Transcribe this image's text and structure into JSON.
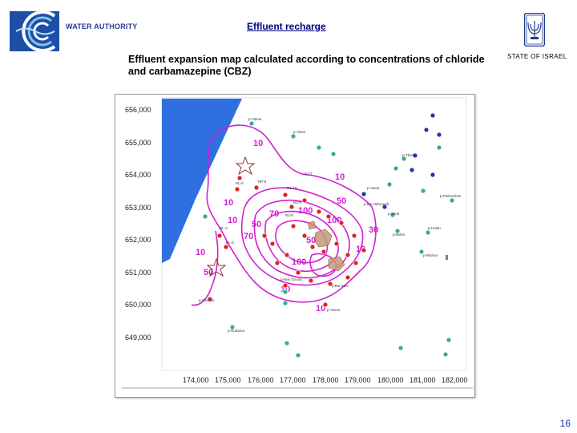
{
  "header": {
    "org_name": "WATER AUTHORITY",
    "title": "Effluent recharge",
    "subtitle": "Effluent expansion map calculated according to concentrations of chloride and carbamazepine (CBZ)",
    "state_label": "STATE OF ISRAEL"
  },
  "map": {
    "y_ticks": [
      "656,000",
      "655,000",
      "654,000",
      "653,000",
      "652,000",
      "651,000",
      "650,000",
      "649,000"
    ],
    "x_ticks": [
      "174,000",
      "175,000",
      "176,000",
      "177,000",
      "178,000",
      "179,000",
      "180,000",
      "181,000",
      "182,000"
    ],
    "contour_labels": [
      "10",
      "10",
      "10",
      "50",
      "50",
      "70",
      "70",
      "100",
      "100",
      "10",
      "30",
      "10",
      "50",
      "100",
      "10",
      "10",
      "10",
      "50"
    ],
    "well_labels": [
      "p-Yavne",
      "S-17",
      "R1-10",
      "R2-9",
      "R2-8",
      "p-Yavar",
      "p-Ein Hahoresh",
      "p-Sitral",
      "p-Yavar",
      "p-Tkuma",
      "p-Bidim",
      "p-Palmachim",
      "p-Holon",
      "p-Rishon",
      "RL-4",
      "RL-5",
      "RL-6",
      "p-Nes Tziona",
      "p-Bat Yam",
      "p-Yavne",
      "p-Gedera",
      "RP-8",
      "p-Ruhama"
    ],
    "legend_symbols": [
      "star-well",
      "red-monitoring-well",
      "green-production-well",
      "blue-production-well"
    ],
    "colors": {
      "sea": "#2f6fe0",
      "contour": "#d020d0",
      "red_well": "#dd2222",
      "green_well": "#3aa898",
      "blue_well": "#2a33a8"
    }
  },
  "footer": {
    "page_number": "16"
  }
}
